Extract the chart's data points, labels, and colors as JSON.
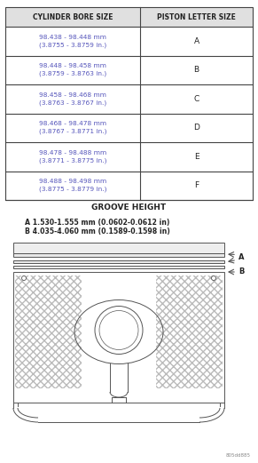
{
  "title": "GROOVE HEIGHT",
  "groove_a": "A 1.530-1.555 mm (0.0602-0.0612 in)",
  "groove_b": "B 4.035-4.060 mm (0.1589-0.1598 in)",
  "table_headers": [
    "CYLINDER BORE SIZE",
    "PISTON LETTER SIZE"
  ],
  "table_rows": [
    [
      "98.438 - 98.448 mm\n(3.8755 - 3.8759 in.)",
      "A"
    ],
    [
      "98.448 - 98.458 mm\n(3.8759 - 3.8763 in.)",
      "B"
    ],
    [
      "98.458 - 98.468 mm\n(3.8763 - 3.8767 in.)",
      "C"
    ],
    [
      "98.468 - 98.478 mm\n(3.8767 - 3.8771 in.)",
      "D"
    ],
    [
      "98.478 - 98.488 mm\n(3.8771 - 3.8775 in.)",
      "E"
    ],
    [
      "98.488 - 98.498 mm\n(3.8775 - 3.8779 in.)",
      "F"
    ]
  ],
  "bg_color": "#ffffff",
  "border_color": "#444444",
  "header_bg": "#e0e0e0",
  "text_color": "#222222",
  "blue_text": "#5555bb",
  "watermark": "805dd885",
  "lc": "#888888",
  "lc_dark": "#555555"
}
